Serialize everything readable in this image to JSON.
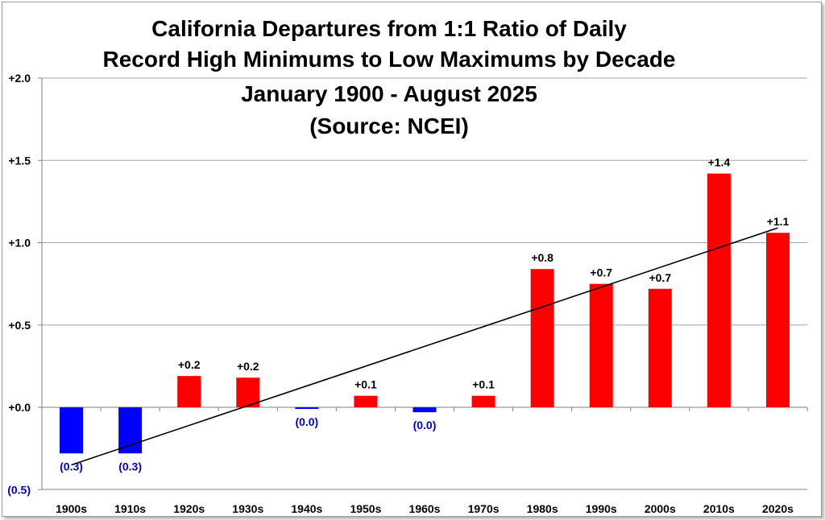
{
  "chart_data": {
    "type": "bar",
    "title_lines": [
      "California Departures from 1:1 Ratio of Daily",
      "Record High Minimums to Low Maximums by Decade",
      "January 1900 - August 2025",
      "(Source: NCEI)"
    ],
    "categories": [
      "1900s",
      "1910s",
      "1920s",
      "1930s",
      "1940s",
      "1950s",
      "1960s",
      "1970s",
      "1980s",
      "1990s",
      "2000s",
      "2010s",
      "2020s"
    ],
    "values": [
      -0.28,
      -0.28,
      0.19,
      0.18,
      -0.01,
      0.07,
      -0.03,
      0.07,
      0.84,
      0.75,
      0.72,
      1.42,
      1.06
    ],
    "data_labels": [
      "(0.3)",
      "(0.3)",
      "+0.2",
      "+0.2",
      "(0.0)",
      "+0.1",
      "(0.0)",
      "+0.1",
      "+0.8",
      "+0.7",
      "+0.7",
      "+1.4",
      "+1.1"
    ],
    "y_ticks": [
      -0.5,
      0.0,
      0.5,
      1.0,
      1.5,
      2.0
    ],
    "y_tick_labels": [
      "(0.5)",
      "+0.0",
      "+0.5",
      "+1.0",
      "+1.5",
      "+2.0"
    ],
    "ylim": [
      -0.5,
      2.0
    ],
    "trendline": {
      "start": -0.35,
      "end": 1.09
    },
    "grid": true,
    "colors": {
      "positive": "#ff0000",
      "negative": "#0000ff",
      "negative_label": "#0000cc",
      "trendline": "#000000",
      "grid": "#a6a6a6"
    }
  }
}
